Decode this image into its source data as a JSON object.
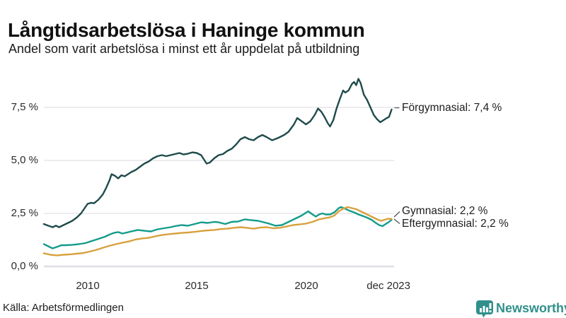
{
  "header": {
    "title": "Långtidsarbetslösa i Haninge kommun",
    "subtitle": "Andel som varit arbetslösa i minst ett år uppdelat på utbildning"
  },
  "footer": {
    "source": "Källa: Arbetsförmedlingen",
    "brand": "Newsworthy",
    "brand_color": "#31908b",
    "logo_icon": "bar-chart-speech-bubble-icon"
  },
  "chart_data": {
    "type": "line",
    "title": "Långtidsarbetslösa i Haninge kommun",
    "subtitle": "Andel som varit arbetslösa i minst ett år uppdelat på utbildning",
    "grid": true,
    "legend_position": "end-of-line",
    "x_axis": {
      "label": "",
      "range_years": [
        2008,
        2024
      ],
      "ticks": [
        "2010",
        "2015",
        "2020",
        "dec 2023"
      ],
      "tick_values": [
        2010,
        2015,
        2020,
        2023.92
      ]
    },
    "y_axis": {
      "label": "",
      "range": [
        0,
        9.2
      ],
      "ticks": [
        "0,0 %",
        "2,5 %",
        "5,0 %",
        "7,5 %"
      ],
      "tick_values": [
        0,
        2.5,
        5.0,
        7.5
      ]
    },
    "series": [
      {
        "name": "Förgymnasial",
        "label": "Förgymnasial: 7,4 %",
        "end_value": 7.4,
        "color": "#1f4b4b",
        "points": [
          [
            2008.0,
            2.0
          ],
          [
            2008.2,
            1.92
          ],
          [
            2008.4,
            1.85
          ],
          [
            2008.55,
            1.92
          ],
          [
            2008.7,
            1.85
          ],
          [
            2008.9,
            1.95
          ],
          [
            2009.1,
            2.05
          ],
          [
            2009.3,
            2.15
          ],
          [
            2009.5,
            2.3
          ],
          [
            2009.7,
            2.5
          ],
          [
            2009.9,
            2.8
          ],
          [
            2010.0,
            2.95
          ],
          [
            2010.15,
            3.0
          ],
          [
            2010.3,
            2.98
          ],
          [
            2010.5,
            3.15
          ],
          [
            2010.7,
            3.4
          ],
          [
            2010.85,
            3.7
          ],
          [
            2011.0,
            4.05
          ],
          [
            2011.1,
            4.35
          ],
          [
            2011.25,
            4.28
          ],
          [
            2011.4,
            4.15
          ],
          [
            2011.55,
            4.3
          ],
          [
            2011.7,
            4.25
          ],
          [
            2011.85,
            4.35
          ],
          [
            2012.0,
            4.45
          ],
          [
            2012.2,
            4.55
          ],
          [
            2012.4,
            4.7
          ],
          [
            2012.6,
            4.85
          ],
          [
            2012.8,
            4.95
          ],
          [
            2013.0,
            5.1
          ],
          [
            2013.2,
            5.2
          ],
          [
            2013.4,
            5.25
          ],
          [
            2013.6,
            5.2
          ],
          [
            2013.8,
            5.25
          ],
          [
            2014.0,
            5.3
          ],
          [
            2014.2,
            5.35
          ],
          [
            2014.4,
            5.28
          ],
          [
            2014.6,
            5.32
          ],
          [
            2014.8,
            5.38
          ],
          [
            2015.0,
            5.35
          ],
          [
            2015.2,
            5.25
          ],
          [
            2015.45,
            4.85
          ],
          [
            2015.6,
            4.9
          ],
          [
            2015.8,
            5.1
          ],
          [
            2016.0,
            5.25
          ],
          [
            2016.2,
            5.3
          ],
          [
            2016.4,
            5.45
          ],
          [
            2016.6,
            5.55
          ],
          [
            2016.8,
            5.75
          ],
          [
            2017.0,
            6.0
          ],
          [
            2017.2,
            6.1
          ],
          [
            2017.4,
            6.0
          ],
          [
            2017.6,
            5.95
          ],
          [
            2017.8,
            6.1
          ],
          [
            2018.0,
            6.2
          ],
          [
            2018.2,
            6.1
          ],
          [
            2018.45,
            5.95
          ],
          [
            2018.7,
            6.05
          ],
          [
            2019.0,
            6.2
          ],
          [
            2019.2,
            6.35
          ],
          [
            2019.45,
            6.7
          ],
          [
            2019.6,
            7.0
          ],
          [
            2019.8,
            6.85
          ],
          [
            2020.0,
            6.7
          ],
          [
            2020.2,
            6.85
          ],
          [
            2020.4,
            7.15
          ],
          [
            2020.55,
            7.45
          ],
          [
            2020.7,
            7.3
          ],
          [
            2020.85,
            7.05
          ],
          [
            2021.0,
            6.75
          ],
          [
            2021.1,
            6.6
          ],
          [
            2021.25,
            6.9
          ],
          [
            2021.4,
            7.45
          ],
          [
            2021.55,
            7.9
          ],
          [
            2021.7,
            8.3
          ],
          [
            2021.8,
            8.2
          ],
          [
            2021.95,
            8.3
          ],
          [
            2022.1,
            8.6
          ],
          [
            2022.2,
            8.7
          ],
          [
            2022.3,
            8.55
          ],
          [
            2022.4,
            8.85
          ],
          [
            2022.5,
            8.65
          ],
          [
            2022.65,
            8.1
          ],
          [
            2022.8,
            7.85
          ],
          [
            2022.95,
            7.5
          ],
          [
            2023.1,
            7.15
          ],
          [
            2023.25,
            6.95
          ],
          [
            2023.4,
            6.8
          ],
          [
            2023.55,
            6.9
          ],
          [
            2023.7,
            7.0
          ],
          [
            2023.8,
            7.05
          ],
          [
            2023.92,
            7.4
          ]
        ]
      },
      {
        "name": "Gymnasial",
        "label": "Gymnasial: 2,2 %",
        "end_value": 2.2,
        "color": "#149c8b",
        "points": [
          [
            2008.0,
            1.05
          ],
          [
            2008.2,
            0.95
          ],
          [
            2008.4,
            0.85
          ],
          [
            2008.6,
            0.92
          ],
          [
            2008.8,
            1.0
          ],
          [
            2009.0,
            1.0
          ],
          [
            2009.3,
            1.02
          ],
          [
            2009.6,
            1.05
          ],
          [
            2009.9,
            1.1
          ],
          [
            2010.2,
            1.2
          ],
          [
            2010.5,
            1.3
          ],
          [
            2010.8,
            1.4
          ],
          [
            2011.0,
            1.5
          ],
          [
            2011.2,
            1.58
          ],
          [
            2011.4,
            1.62
          ],
          [
            2011.6,
            1.55
          ],
          [
            2011.8,
            1.6
          ],
          [
            2012.0,
            1.65
          ],
          [
            2012.3,
            1.72
          ],
          [
            2012.6,
            1.68
          ],
          [
            2012.9,
            1.65
          ],
          [
            2013.2,
            1.75
          ],
          [
            2013.5,
            1.8
          ],
          [
            2013.8,
            1.85
          ],
          [
            2014.0,
            1.9
          ],
          [
            2014.3,
            1.95
          ],
          [
            2014.6,
            1.92
          ],
          [
            2014.9,
            2.0
          ],
          [
            2015.2,
            2.08
          ],
          [
            2015.5,
            2.05
          ],
          [
            2015.8,
            2.1
          ],
          [
            2016.0,
            2.08
          ],
          [
            2016.3,
            2.0
          ],
          [
            2016.6,
            2.1
          ],
          [
            2016.9,
            2.12
          ],
          [
            2017.2,
            2.22
          ],
          [
            2017.5,
            2.18
          ],
          [
            2017.8,
            2.15
          ],
          [
            2018.0,
            2.1
          ],
          [
            2018.3,
            2.02
          ],
          [
            2018.6,
            1.92
          ],
          [
            2018.9,
            1.95
          ],
          [
            2019.2,
            2.1
          ],
          [
            2019.5,
            2.25
          ],
          [
            2019.8,
            2.4
          ],
          [
            2020.1,
            2.6
          ],
          [
            2020.3,
            2.45
          ],
          [
            2020.45,
            2.35
          ],
          [
            2020.6,
            2.45
          ],
          [
            2020.75,
            2.5
          ],
          [
            2020.9,
            2.45
          ],
          [
            2021.1,
            2.45
          ],
          [
            2021.3,
            2.55
          ],
          [
            2021.5,
            2.75
          ],
          [
            2021.6,
            2.8
          ],
          [
            2021.8,
            2.72
          ],
          [
            2022.0,
            2.62
          ],
          [
            2022.2,
            2.55
          ],
          [
            2022.4,
            2.45
          ],
          [
            2022.6,
            2.38
          ],
          [
            2022.8,
            2.3
          ],
          [
            2023.0,
            2.2
          ],
          [
            2023.2,
            2.05
          ],
          [
            2023.35,
            1.95
          ],
          [
            2023.5,
            1.9
          ],
          [
            2023.65,
            2.0
          ],
          [
            2023.8,
            2.1
          ],
          [
            2023.92,
            2.2
          ]
        ]
      },
      {
        "name": "Eftergymnasial",
        "label": "Eftergymnasial: 2,2 %",
        "end_value": 2.2,
        "color": "#d8a13d",
        "points": [
          [
            2008.0,
            0.62
          ],
          [
            2008.3,
            0.55
          ],
          [
            2008.6,
            0.52
          ],
          [
            2008.9,
            0.55
          ],
          [
            2009.2,
            0.57
          ],
          [
            2009.5,
            0.6
          ],
          [
            2009.8,
            0.63
          ],
          [
            2010.1,
            0.7
          ],
          [
            2010.4,
            0.78
          ],
          [
            2010.7,
            0.88
          ],
          [
            2011.0,
            0.97
          ],
          [
            2011.3,
            1.05
          ],
          [
            2011.6,
            1.12
          ],
          [
            2011.9,
            1.18
          ],
          [
            2012.2,
            1.27
          ],
          [
            2012.5,
            1.32
          ],
          [
            2012.8,
            1.35
          ],
          [
            2013.1,
            1.42
          ],
          [
            2013.4,
            1.48
          ],
          [
            2013.7,
            1.52
          ],
          [
            2014.0,
            1.55
          ],
          [
            2014.3,
            1.58
          ],
          [
            2014.6,
            1.6
          ],
          [
            2014.9,
            1.63
          ],
          [
            2015.2,
            1.67
          ],
          [
            2015.5,
            1.7
          ],
          [
            2015.8,
            1.72
          ],
          [
            2016.1,
            1.76
          ],
          [
            2016.4,
            1.78
          ],
          [
            2016.7,
            1.82
          ],
          [
            2017.0,
            1.85
          ],
          [
            2017.3,
            1.82
          ],
          [
            2017.6,
            1.78
          ],
          [
            2017.9,
            1.83
          ],
          [
            2018.2,
            1.85
          ],
          [
            2018.5,
            1.8
          ],
          [
            2018.8,
            1.82
          ],
          [
            2019.1,
            1.88
          ],
          [
            2019.4,
            1.95
          ],
          [
            2019.7,
            1.98
          ],
          [
            2020.0,
            2.02
          ],
          [
            2020.3,
            2.1
          ],
          [
            2020.6,
            2.22
          ],
          [
            2020.9,
            2.28
          ],
          [
            2021.1,
            2.32
          ],
          [
            2021.3,
            2.4
          ],
          [
            2021.5,
            2.6
          ],
          [
            2021.7,
            2.72
          ],
          [
            2021.9,
            2.8
          ],
          [
            2022.1,
            2.75
          ],
          [
            2022.3,
            2.7
          ],
          [
            2022.5,
            2.6
          ],
          [
            2022.7,
            2.5
          ],
          [
            2022.9,
            2.4
          ],
          [
            2023.1,
            2.3
          ],
          [
            2023.3,
            2.2
          ],
          [
            2023.45,
            2.15
          ],
          [
            2023.6,
            2.2
          ],
          [
            2023.75,
            2.25
          ],
          [
            2023.92,
            2.24
          ]
        ]
      }
    ]
  }
}
